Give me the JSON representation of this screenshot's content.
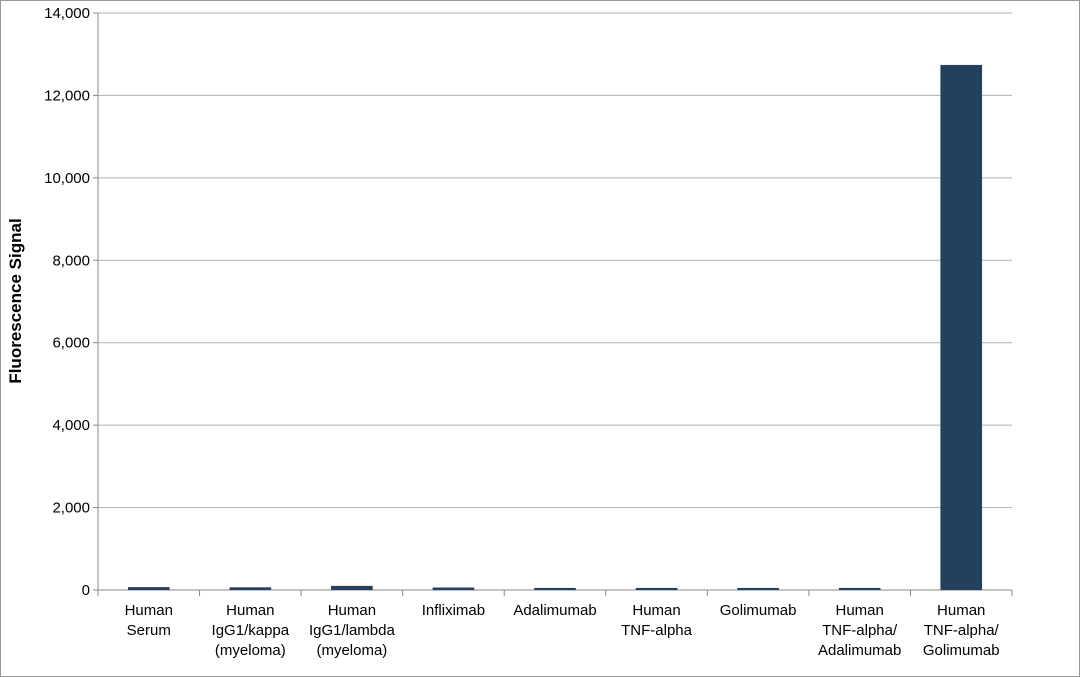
{
  "chart_data": {
    "type": "bar",
    "y_label": "Fluorescence Signal",
    "categories": [
      [
        "Human",
        "Serum"
      ],
      [
        "Human",
        "IgG1/kappa",
        "(myeloma)"
      ],
      [
        "Human",
        "IgG1/lambda",
        "(myeloma)"
      ],
      [
        "Infliximab"
      ],
      [
        "Adalimumab"
      ],
      [
        "Human",
        "TNF-alpha"
      ],
      [
        "Golimumab"
      ],
      [
        "Human",
        "TNF-alpha/",
        "Adalimumab"
      ],
      [
        "Human",
        "TNF-alpha/",
        "Golimumab"
      ]
    ],
    "values": [
      70,
      65,
      100,
      60,
      50,
      50,
      50,
      50,
      12740
    ],
    "color": "#253f5f",
    "ylim": [
      0,
      14000
    ],
    "yticks": [
      0,
      {
        "value": 2000,
        "label": "2,000"
      },
      {
        "value": 4000,
        "label": "4,000"
      },
      {
        "value": 6000,
        "label": "6,000"
      },
      {
        "value": 8000,
        "label": "8,000"
      },
      {
        "value": 10000,
        "label": "10,000"
      },
      {
        "value": 12000,
        "label": "12,000"
      },
      {
        "value": 14000,
        "label": "14,000"
      }
    ],
    "grid": true
  }
}
